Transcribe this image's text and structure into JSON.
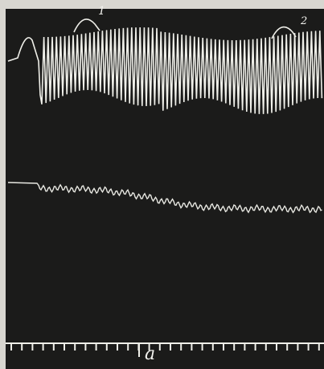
{
  "annotations": {
    "marker_1": "1",
    "marker_2": "2",
    "time_label": "a"
  }
}
